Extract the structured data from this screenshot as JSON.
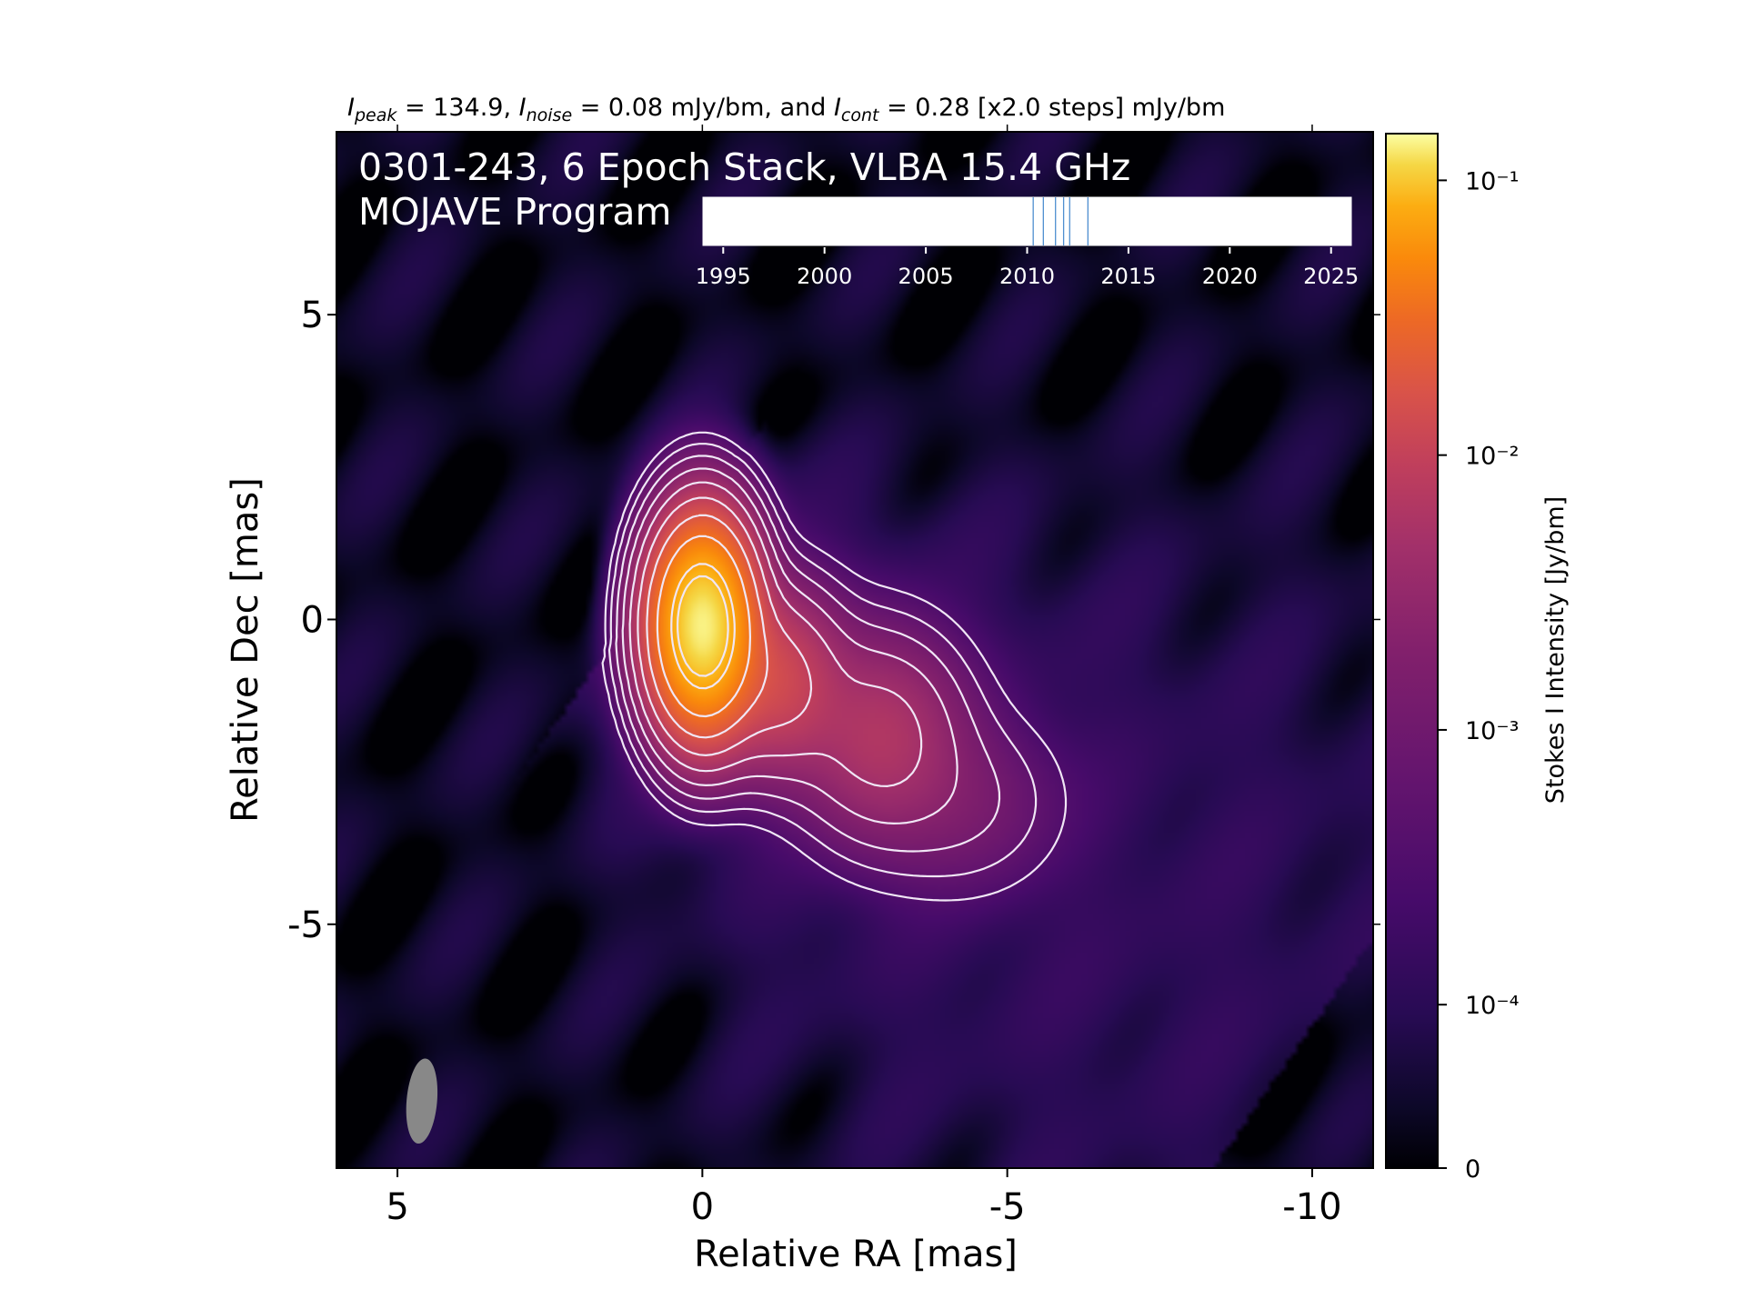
{
  "chart_data": {
    "type": "heatmap",
    "title_parts": {
      "peak_label": "I",
      "peak_sub": "peak",
      "peak_value": " = 134.9, ",
      "noise_label": "I",
      "noise_sub": "noise",
      "noise_value": " = 0.08 mJy/bm, and ",
      "cont_label": "I",
      "cont_sub": "cont",
      "cont_value": " = 0.28 [x2.0 steps] mJy/bm"
    },
    "annotation_line1": "0301-243, 6 Epoch Stack, VLBA 15.4 GHz",
    "annotation_line2": "MOJAVE Program",
    "xlabel": "Relative RA [mas]",
    "ylabel": "Relative Dec [mas]",
    "xlim": [
      6,
      -11
    ],
    "ylim": [
      -9,
      8
    ],
    "xticks": [
      5,
      0,
      -5,
      -10
    ],
    "xtick_labels": [
      "5",
      "0",
      "-5",
      "-10"
    ],
    "yticks": [
      5,
      0,
      -5
    ],
    "ytick_labels": [
      "5",
      "0",
      "-5"
    ],
    "colorbar": {
      "label": "Stokes I Intensity [Jy/bm]",
      "scale": "log",
      "ticks": [
        0.1,
        0.01,
        0.001,
        0.0001,
        0
      ],
      "tick_labels": [
        "10⁻¹",
        "10⁻²",
        "10⁻³",
        "10⁻⁴",
        "0"
      ],
      "colormap": "inferno"
    },
    "components": [
      {
        "ra": 0.0,
        "dec": -0.1,
        "peak": 0.1349,
        "sigma_ra": 0.45,
        "sigma_dec": 0.9
      },
      {
        "ra": -1.2,
        "dec": -1.0,
        "peak": 0.012,
        "sigma_ra": 0.6,
        "sigma_dec": 0.8
      },
      {
        "ra": -2.9,
        "dec": -1.9,
        "peak": 0.006,
        "sigma_ra": 0.75,
        "sigma_dec": 0.9
      },
      {
        "ra": -4.2,
        "dec": -3.0,
        "peak": 0.0012,
        "sigma_ra": 0.9,
        "sigma_dec": 0.8
      }
    ],
    "beam": {
      "ra": 4.6,
      "dec": -7.9,
      "major": 1.4,
      "minor": 0.5,
      "pa": 5
    },
    "epoch_axis": {
      "ticks": [
        1995,
        2000,
        2005,
        2010,
        2015,
        2020,
        2025
      ],
      "tick_labels": [
        "1995",
        "2000",
        "2005",
        "2010",
        "2015",
        "2020",
        "2025"
      ],
      "range": [
        1994,
        2026
      ],
      "epochs": [
        2010.3,
        2010.8,
        2011.4,
        2011.8,
        2012.1,
        2013.0
      ]
    },
    "grid": false
  },
  "colors": {
    "background": "#000004",
    "contour": "#f0e6f5",
    "beam": "#888888",
    "epoch_line": "#4f8fd0",
    "annotation_text": "#ffffff"
  }
}
